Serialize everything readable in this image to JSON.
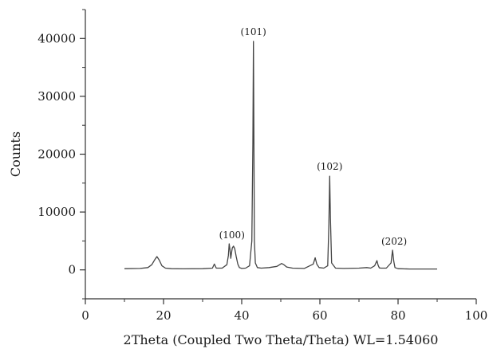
{
  "chart_data": {
    "type": "line",
    "title": "",
    "xlabel": "2Theta (Coupled Two Theta/Theta) WL=1.54060",
    "ylabel": "Counts",
    "xlim": [
      0,
      100
    ],
    "ylim": [
      -5000,
      45000
    ],
    "x_ticks": [
      0,
      20,
      40,
      60,
      80,
      100
    ],
    "x_tick_labels": [
      "0",
      "20",
      "40",
      "60",
      "80",
      "100"
    ],
    "y_ticks": [
      0,
      10000,
      20000,
      30000,
      40000
    ],
    "y_tick_labels": [
      "0",
      "10000",
      "20000",
      "30000",
      "40000"
    ],
    "grid": false,
    "legend": "none",
    "line_color": "#444444",
    "series": [
      {
        "x": [
          10,
          14,
          16,
          17,
          17.7,
          18.3,
          18.9,
          19.6,
          20.5,
          22,
          25,
          30,
          32.5,
          33,
          33.5,
          35,
          36.2,
          36.6,
          36.8,
          37,
          37.2,
          37.4,
          37.6,
          37.9,
          38.2,
          38.6,
          39,
          39.4,
          40,
          41,
          42,
          42.6,
          42.85,
          43,
          43.1,
          43.25,
          43.5,
          44,
          45,
          47,
          49,
          50.2,
          50.8,
          51.5,
          53,
          56,
          58.3,
          58.8,
          59.2,
          59.8,
          61,
          62,
          62.3,
          62.5,
          62.7,
          63,
          64,
          66,
          70,
          72,
          73,
          74,
          74.6,
          74.9,
          75.2,
          75.6,
          77,
          78.2,
          78.6,
          78.9,
          79.2,
          80,
          83,
          86,
          90
        ],
        "y": [
          200,
          250,
          400,
          900,
          1700,
          2300,
          1700,
          700,
          300,
          200,
          180,
          200,
          300,
          1000,
          300,
          300,
          900,
          2500,
          4500,
          3500,
          2000,
          3000,
          3800,
          4100,
          3700,
          2300,
          1000,
          400,
          250,
          300,
          700,
          5000,
          22000,
          39500,
          25000,
          5000,
          1200,
          400,
          300,
          400,
          600,
          1100,
          900,
          500,
          300,
          250,
          1000,
          2100,
          1000,
          400,
          300,
          700,
          8000,
          16200,
          9000,
          1200,
          300,
          250,
          300,
          400,
          300,
          700,
          1600,
          800,
          350,
          300,
          300,
          1200,
          3400,
          1500,
          400,
          200,
          150,
          150,
          150
        ]
      }
    ],
    "annotations": [
      {
        "text": "(100)",
        "x": 37.5,
        "y": 5500
      },
      {
        "text": "(101)",
        "x": 43,
        "y": 40600
      },
      {
        "text": "(102)",
        "x": 62.5,
        "y": 17300
      },
      {
        "text": "(202)",
        "x": 79,
        "y": 4400
      }
    ]
  }
}
